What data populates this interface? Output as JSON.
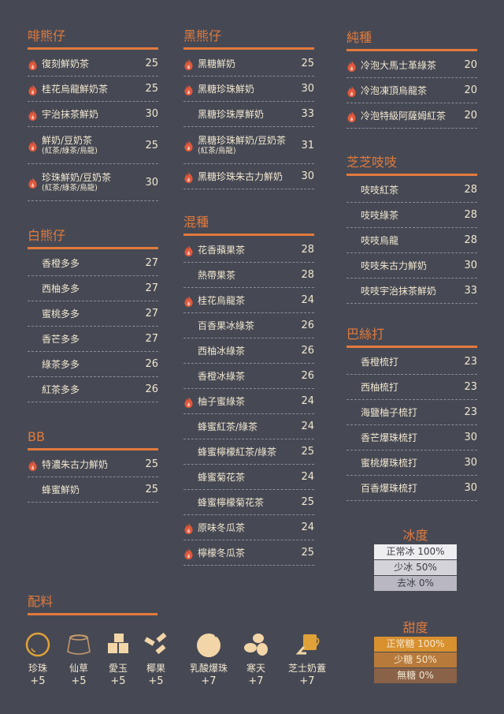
{
  "sections": [
    {
      "title": "啡熊仔",
      "items": [
        {
          "name": "復刻鮮奶茶",
          "price": "25",
          "hot": true
        },
        {
          "name": "桂花烏龍鮮奶茶",
          "price": "25",
          "hot": true
        },
        {
          "name": "宇治抹茶鮮奶",
          "price": "30",
          "hot": true
        },
        {
          "name": "鮮奶/豆奶茶",
          "sub": "(紅茶/綠茶/烏龍)",
          "price": "25",
          "hot": true
        },
        {
          "name": "珍珠鮮奶/豆奶茶",
          "sub": "(紅茶/綠茶/烏龍)",
          "price": "30",
          "hot": true
        }
      ]
    },
    {
      "title": "白熊仔",
      "items": [
        {
          "name": "香橙多多",
          "price": "27"
        },
        {
          "name": "西柚多多",
          "price": "27"
        },
        {
          "name": "蜜桃多多",
          "price": "27"
        },
        {
          "name": "香芒多多",
          "price": "27"
        },
        {
          "name": "綠茶多多",
          "price": "26"
        },
        {
          "name": "紅茶多多",
          "price": "26"
        }
      ]
    },
    {
      "title": "BB",
      "items": [
        {
          "name": "特濃朱古力鮮奶",
          "price": "25",
          "hot": true
        },
        {
          "name": "蜂蜜鮮奶",
          "price": "25"
        }
      ]
    },
    {
      "title": "黑熊仔",
      "items": [
        {
          "name": "黑糖鮮奶",
          "price": "25",
          "hot": true
        },
        {
          "name": "黑糖珍珠鮮奶",
          "price": "30",
          "hot": true
        },
        {
          "name": "黑糖珍珠厚鮮奶",
          "price": "33"
        },
        {
          "name": "黑糖珍珠鮮奶/豆奶茶",
          "sub": "(紅茶/烏龍)",
          "price": "31",
          "hot": true
        },
        {
          "name": "黑糖珍珠朱古力鮮奶",
          "price": "30",
          "hot": true
        }
      ]
    },
    {
      "title": "混種",
      "items": [
        {
          "name": "花香蘋果茶",
          "price": "28",
          "hot": true
        },
        {
          "name": "熱帶果茶",
          "price": "28"
        },
        {
          "name": "桂花烏龍茶",
          "price": "24",
          "hot": true
        },
        {
          "name": "百香果冰綠茶",
          "price": "26"
        },
        {
          "name": "西柚冰綠茶",
          "price": "26"
        },
        {
          "name": "香橙冰綠茶",
          "price": "26"
        },
        {
          "name": "柚子蜜綠茶",
          "price": "24",
          "hot": true
        },
        {
          "name": "蜂蜜紅茶/綠茶",
          "price": "24"
        },
        {
          "name": "蜂蜜檸檬紅茶/綠茶",
          "price": "25"
        },
        {
          "name": "蜂蜜菊花茶",
          "price": "24"
        },
        {
          "name": "蜂蜜檸檬菊花茶",
          "price": "25"
        },
        {
          "name": "原味冬瓜茶",
          "price": "24",
          "hot": true
        },
        {
          "name": "檸檬冬瓜茶",
          "price": "25",
          "hot": true
        }
      ]
    },
    {
      "title": "純種",
      "items": [
        {
          "name": "冷泡大馬士革綠茶",
          "price": "20",
          "hot": true
        },
        {
          "name": "冷泡凍頂烏龍茶",
          "price": "20",
          "hot": true
        },
        {
          "name": "冷泡特級阿薩姆紅茶",
          "price": "20",
          "hot": true
        }
      ]
    },
    {
      "title": "芝芝吱吱",
      "items": [
        {
          "name": "吱吱紅茶",
          "price": "28"
        },
        {
          "name": "吱吱綠茶",
          "price": "28"
        },
        {
          "name": "吱吱烏龍",
          "price": "28"
        },
        {
          "name": "吱吱朱古力鮮奶",
          "price": "30"
        },
        {
          "name": "吱吱宇治抹茶鮮奶",
          "price": "33"
        }
      ]
    },
    {
      "title": "巴絲打",
      "items": [
        {
          "name": "香橙梳打",
          "price": "23"
        },
        {
          "name": "西柚梳打",
          "price": "23"
        },
        {
          "name": "海鹽柚子梳打",
          "price": "23"
        },
        {
          "name": "香芒爆珠梳打",
          "price": "30"
        },
        {
          "name": "蜜桃爆珠梳打",
          "price": "30"
        },
        {
          "name": "百香爆珠梳打",
          "price": "30"
        }
      ]
    }
  ],
  "ice": {
    "title": "冰度",
    "levels": [
      {
        "label": "正常冰 100%",
        "color": "#eeeef0"
      },
      {
        "label": "少冰 50%",
        "color": "#d4d3d9"
      },
      {
        "label": "去冰 0%",
        "color": "#b9b8c0"
      }
    ]
  },
  "sugar": {
    "title": "甜度",
    "levels": [
      {
        "label": "正常糖 100%",
        "color": "#d9902e"
      },
      {
        "label": "少糖 50%",
        "color": "#b87a3a"
      },
      {
        "label": "無糖 0%",
        "color": "#8a6248"
      }
    ]
  },
  "toppings": {
    "title": "配料",
    "items": [
      {
        "name": "珍珠",
        "price": "+5",
        "icon": "pearl-icon"
      },
      {
        "name": "仙草",
        "price": "+5",
        "icon": "grass-jelly-icon"
      },
      {
        "name": "愛玉",
        "price": "+5",
        "icon": "aiyu-jelly-icon"
      },
      {
        "name": "椰果",
        "price": "+5",
        "icon": "nata-de-coco-icon"
      },
      {
        "name": "乳酸爆珠",
        "price": "+7",
        "icon": "popping-boba-icon"
      },
      {
        "name": "寒天",
        "price": "+7",
        "icon": "agar-icon"
      },
      {
        "name": "芝士奶蓋",
        "price": "+7",
        "icon": "cheese-foam-icon"
      }
    ]
  },
  "colors": {
    "accent": "#e27a3c",
    "background": "#464954",
    "text": "#f1e6cf",
    "hot": "#e0583c"
  }
}
